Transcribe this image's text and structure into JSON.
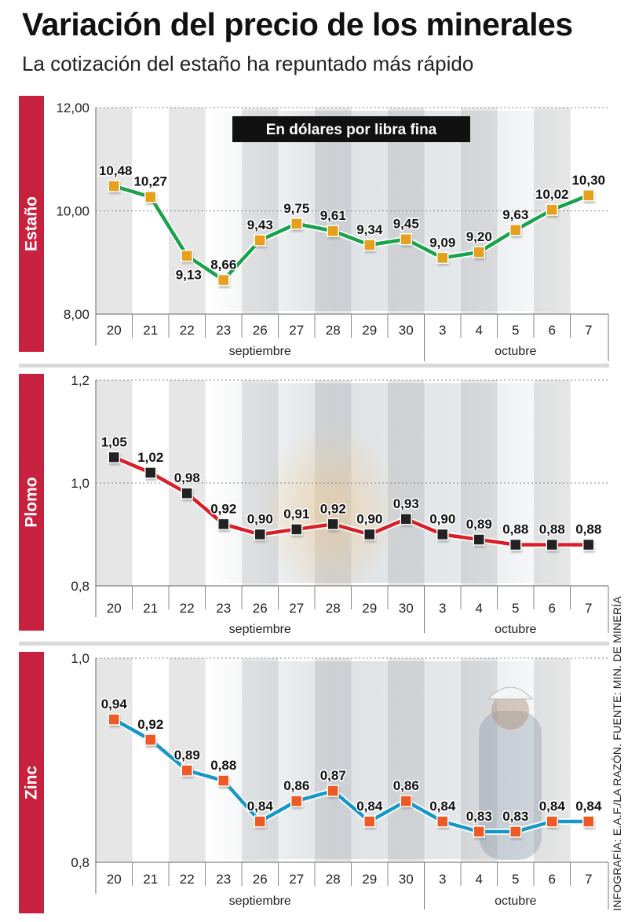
{
  "title": "Variación del precio de los minerales",
  "subtitle": "La cotización del estaño ha repuntado más rápido",
  "credit": "INFOGRAFÍA: E.A.F./LA RAZÓN. FUENTE: MIN. DE MINERÍA",
  "colors": {
    "side_label_bg": "#c8213f",
    "grid_dark": "#b5b5b5",
    "photo_tint": "#9aa6b0"
  },
  "chart_data": [
    {
      "type": "line",
      "name": "Estaño",
      "badge": "En dólares por libra fina",
      "categories": [
        "20",
        "21",
        "22",
        "23",
        "26",
        "27",
        "28",
        "29",
        "30",
        "3",
        "4",
        "5",
        "6",
        "7"
      ],
      "month_labels": [
        "septiembre",
        "octubre"
      ],
      "series": [
        {
          "name": "Estaño",
          "values": [
            10.48,
            10.27,
            9.13,
            8.66,
            9.43,
            9.75,
            9.61,
            9.34,
            9.45,
            9.09,
            9.2,
            9.63,
            10.02,
            10.3
          ]
        }
      ],
      "value_labels": [
        "10,48",
        "10,27",
        "9,13",
        "8,66",
        "9,43",
        "9,75",
        "9,61",
        "9,34",
        "9,45",
        "9,09",
        "9,20",
        "9,63",
        "10,02",
        "10,30"
      ],
      "yticks": [
        8,
        10,
        12
      ],
      "ytick_labels": [
        "8,00",
        "10,00",
        "12,00"
      ],
      "ylim": [
        8,
        12
      ],
      "line_color": "#19a14b",
      "marker_color": "#e6a01e"
    },
    {
      "type": "line",
      "name": "Plomo",
      "categories": [
        "20",
        "21",
        "22",
        "23",
        "26",
        "27",
        "28",
        "29",
        "30",
        "3",
        "4",
        "5",
        "6",
        "7"
      ],
      "month_labels": [
        "septiembre",
        "octubre"
      ],
      "series": [
        {
          "name": "Plomo",
          "values": [
            1.05,
            1.02,
            0.98,
            0.92,
            0.9,
            0.91,
            0.92,
            0.9,
            0.93,
            0.9,
            0.89,
            0.88,
            0.88,
            0.88
          ]
        }
      ],
      "value_labels": [
        "1,05",
        "1,02",
        "0,98",
        "0,92",
        "0,90",
        "0,91",
        "0,92",
        "0,90",
        "0,93",
        "0,90",
        "0,89",
        "0,88",
        "0,88",
        "0,88"
      ],
      "yticks": [
        0.8,
        1.0,
        1.2
      ],
      "ytick_labels": [
        "0,8",
        "1,0",
        "1,2"
      ],
      "ylim": [
        0.8,
        1.2
      ],
      "line_color": "#d81f28",
      "marker_color": "#222222"
    },
    {
      "type": "line",
      "name": "Zinc",
      "categories": [
        "20",
        "21",
        "22",
        "23",
        "26",
        "27",
        "28",
        "29",
        "30",
        "3",
        "4",
        "5",
        "6",
        "7"
      ],
      "month_labels": [
        "septiembre",
        "octubre"
      ],
      "series": [
        {
          "name": "Zinc",
          "values": [
            0.94,
            0.92,
            0.89,
            0.88,
            0.84,
            0.86,
            0.87,
            0.84,
            0.86,
            0.84,
            0.83,
            0.83,
            0.84,
            0.84
          ]
        }
      ],
      "value_labels": [
        "0,94",
        "0,92",
        "0,89",
        "0,88",
        "0,84",
        "0,86",
        "0,87",
        "0,84",
        "0,86",
        "0,84",
        "0,83",
        "0,83",
        "0,84",
        "0,84"
      ],
      "yticks": [
        0.8,
        1.0
      ],
      "ytick_labels": [
        "0,8",
        "1,0"
      ],
      "ylim": [
        0.8,
        1.0
      ],
      "line_color": "#1998c7",
      "marker_color": "#ee5a24"
    }
  ]
}
